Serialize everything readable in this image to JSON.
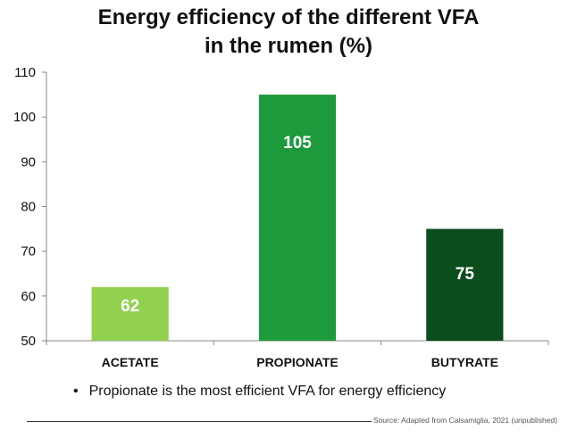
{
  "chart_data": {
    "type": "bar",
    "title_line1": "Energy efficiency of the different VFA",
    "title_line2": "in the rumen (%)",
    "categories": [
      "ACETATE",
      "PROPIONATE",
      "BUTYRATE"
    ],
    "values": [
      62,
      105,
      75
    ],
    "data_labels": [
      "62",
      "105",
      "75"
    ],
    "colors": [
      "#92d050",
      "#1d9a3c",
      "#0b4d1c"
    ],
    "ylim": [
      50,
      110
    ],
    "yticks": [
      "50",
      "60",
      "70",
      "80",
      "90",
      "100",
      "110"
    ],
    "xlabel": "",
    "ylabel": "",
    "grid": false,
    "legend": "none"
  },
  "note": {
    "bullet": "•",
    "text": "Propionate is the most efficient VFA for energy efficiency"
  },
  "source": "Source: Adapted from Calsamiglia, 2021 (unpublished)"
}
